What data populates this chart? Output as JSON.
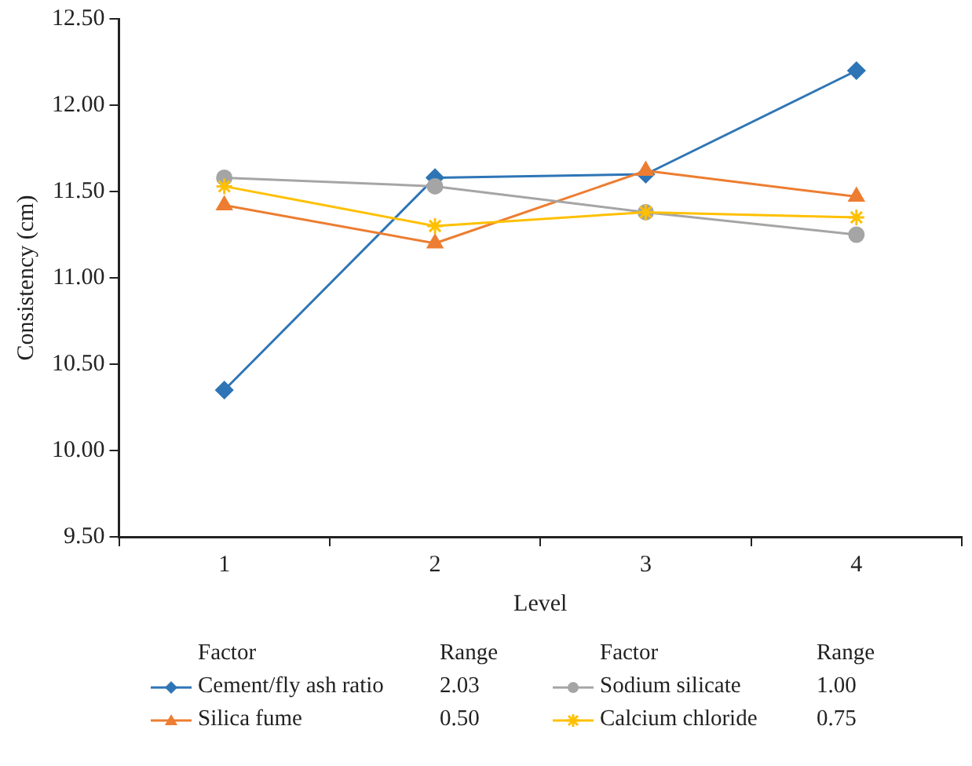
{
  "chart_data": {
    "type": "line",
    "xlabel": "Level",
    "ylabel": "Consistency (cm)",
    "categories": [
      "1",
      "2",
      "3",
      "4"
    ],
    "ylim": [
      9.5,
      12.5
    ],
    "yticks": [
      {
        "value": 9.5,
        "label": "9.50"
      },
      {
        "value": 10,
        "label": "10.00"
      },
      {
        "value": 10.5,
        "label": "10.50"
      },
      {
        "value": 11,
        "label": "11.00"
      },
      {
        "value": 11.5,
        "label": "11.50"
      },
      {
        "value": 12,
        "label": "12.00"
      },
      {
        "value": 12.5,
        "label": "12.50"
      }
    ],
    "grid": false,
    "legend": "bottom",
    "legend_title": "Factor",
    "annotations": [
      "Range",
      "2.03",
      "0.50",
      "1.00",
      "0.75"
    ],
    "series": [
      {
        "name": "Cement/fly ash ratio",
        "color": "#2e75b6",
        "marker": "diamond",
        "values": [
          10.35,
          11.58,
          11.6,
          12.2
        ]
      },
      {
        "name": "Silica fume",
        "color": "#ed7d31",
        "marker": "triangle",
        "values": [
          11.42,
          11.2,
          11.62,
          11.47
        ]
      },
      {
        "name": "Sodium silicate",
        "color": "#a5a5a5",
        "marker": "circle",
        "values": [
          11.58,
          11.53,
          11.38,
          11.25
        ]
      },
      {
        "name": "Calcium chloride",
        "color": "#ffc000",
        "marker": "cross",
        "values": [
          11.53,
          11.3,
          11.38,
          11.35
        ]
      }
    ]
  }
}
